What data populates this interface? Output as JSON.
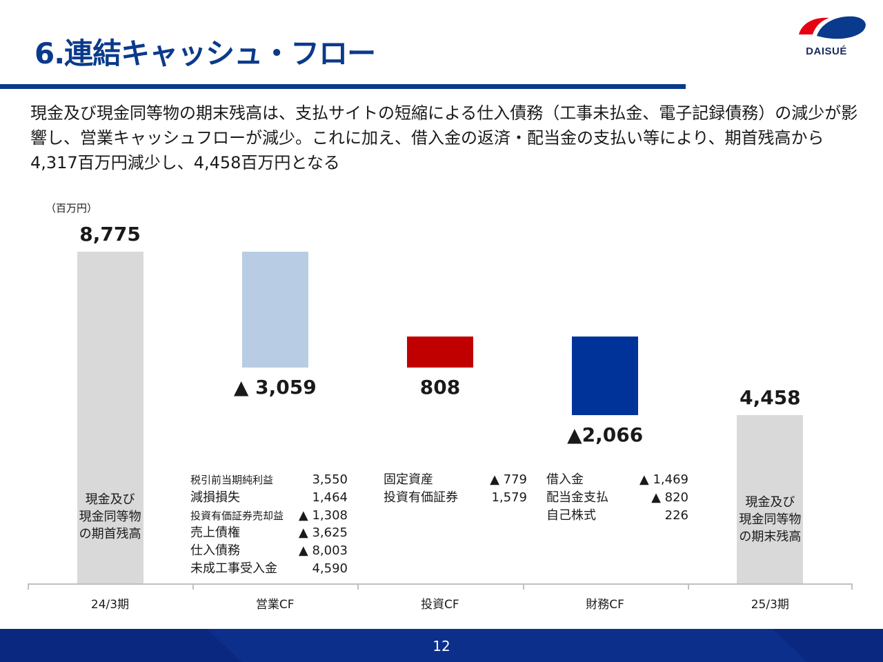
{
  "header": {
    "title": "6.連結キャッシュ・フロー",
    "logo_text": "DAISUÉ"
  },
  "summary": "現金及び現金同等物の期末残高は、支払サイトの短縮による仕入債務（工事未払金、電子記録債務）の減少が影響し、営業キャッシュフローが減少。これに加え、借入金の返済・配当金の支払い等により、期首残高から4,317百万円減少し、4,458百万円となる",
  "chart_data": {
    "type": "bar",
    "subtype": "waterfall",
    "unit": "（百万円）",
    "categories": [
      "24/3期",
      "営業CF",
      "投資CF",
      "財務CF",
      "25/3期"
    ],
    "steps": [
      {
        "category": "24/3期",
        "kind": "total",
        "value": 8775,
        "label": "8,775",
        "inner_label": "現金及び\n現金同等物\nの期首残高",
        "color": "#d9d9d9"
      },
      {
        "category": "営業CF",
        "kind": "change",
        "value": -3059,
        "label": "▲ 3,059",
        "color": "#b8cce4"
      },
      {
        "category": "投資CF",
        "kind": "change",
        "value": 808,
        "label": "808",
        "color": "#c00000"
      },
      {
        "category": "財務CF",
        "kind": "change",
        "value": -2066,
        "label": "▲2,066",
        "color": "#003399"
      },
      {
        "category": "25/3期",
        "kind": "total",
        "value": 4458,
        "label": "4,458",
        "inner_label": "現金及び\n現金同等物\nの期末残高",
        "color": "#d9d9d9"
      }
    ],
    "ylim": [
      0,
      8775
    ],
    "grid": false,
    "legend": "none"
  },
  "details": {
    "operating": [
      {
        "name": "税引前当期純利益",
        "value": "3,550",
        "small": true
      },
      {
        "name": "減損損失",
        "value": "1,464"
      },
      {
        "name": "投資有価証券売却益",
        "value": "▲ 1,308",
        "small": true
      },
      {
        "name": "売上債権",
        "value": "▲ 3,625"
      },
      {
        "name": "仕入債務",
        "value": "▲ 8,003"
      },
      {
        "name": "未成工事受入金",
        "value": "4,590"
      }
    ],
    "investing": [
      {
        "name": "固定資産",
        "value": "▲ 779"
      },
      {
        "name": "投資有価証券",
        "value": "1,579"
      }
    ],
    "financing": [
      {
        "name": "借入金",
        "value": "▲ 1,469"
      },
      {
        "name": "配当金支払",
        "value": "▲ 820"
      },
      {
        "name": "自己株式",
        "value": "226"
      }
    ]
  },
  "footer": {
    "page_number": "12"
  },
  "colors": {
    "brand_blue": "#0a3a8c",
    "logo_red": "#e60012",
    "logo_blue": "#0a3a8c"
  }
}
